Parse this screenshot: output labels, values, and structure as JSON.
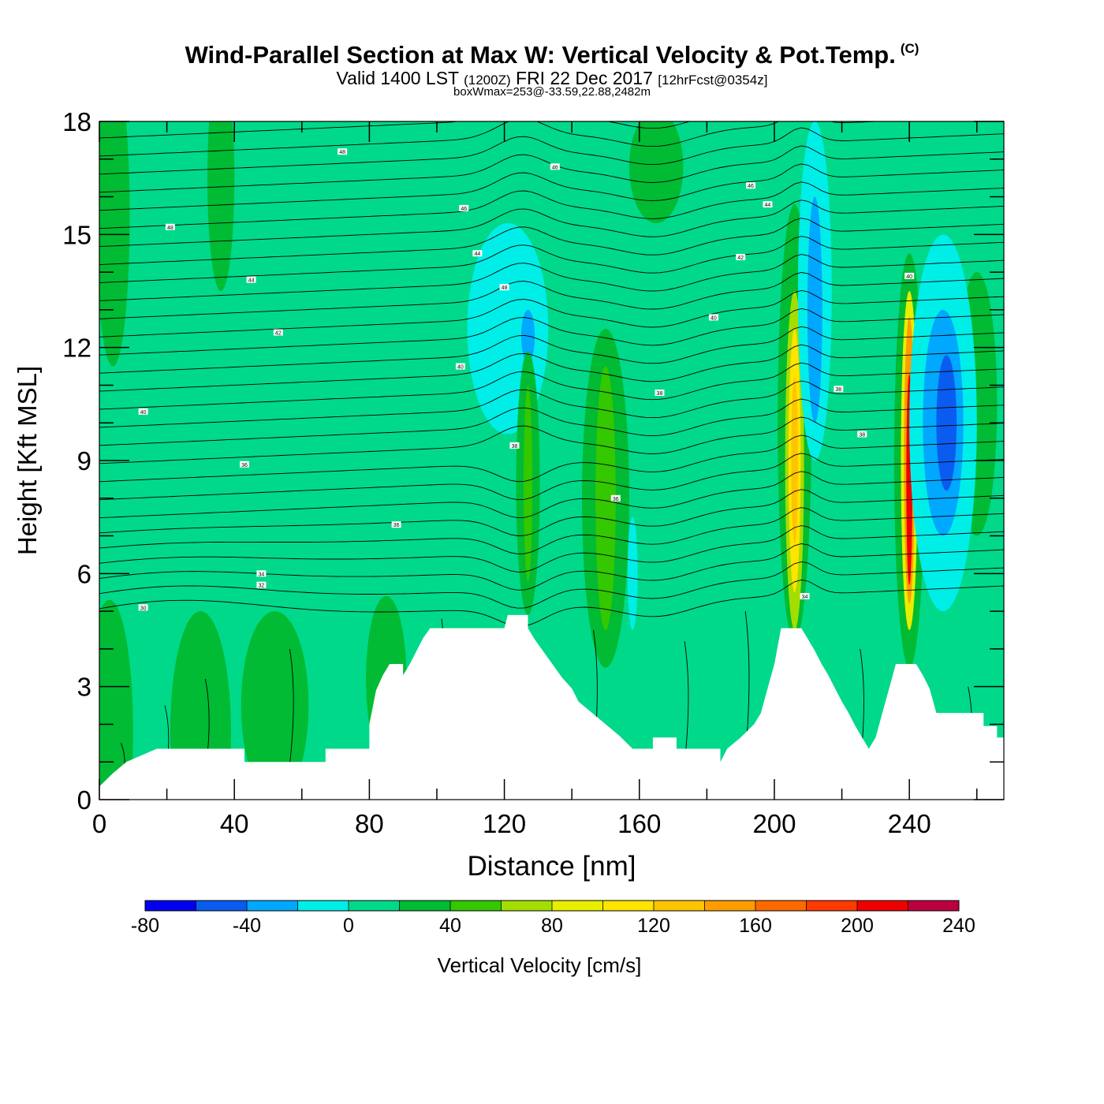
{
  "title": {
    "main": "Wind-Parallel Section at Max W: Vertical Velocity & Pot.Temp.",
    "copyright_mark": "(C)",
    "valid_prefix": "Valid 1400 LST",
    "valid_utc": "(1200Z)",
    "valid_date": "FRI 22 Dec 2017",
    "forecast": "[12hrFcst@0354z]",
    "box_wmax": "boxWmax=253@-33.59,22.88,2482m"
  },
  "chart_data": {
    "type": "heatmap",
    "xlabel": "Distance [nm]",
    "ylabel": "Height [Kft MSL]",
    "xlim": [
      0,
      268
    ],
    "ylim": [
      0,
      18
    ],
    "xticks": [
      0,
      40,
      80,
      120,
      160,
      200,
      240
    ],
    "yticks": [
      0,
      3,
      6,
      9,
      12,
      15,
      18
    ],
    "colorbar": {
      "label": "Vertical Velocity [cm/s]",
      "levels": [
        -80,
        -60,
        -40,
        -20,
        0,
        20,
        40,
        60,
        80,
        100,
        120,
        140,
        160,
        180,
        200,
        220,
        240
      ],
      "tick_labels": [
        "-80",
        "-40",
        "0",
        "40",
        "80",
        "120",
        "160",
        "200",
        "240"
      ],
      "colors": [
        "#0000ee",
        "#0a5cf0",
        "#00a8ff",
        "#00eee8",
        "#00d98a",
        "#00bb33",
        "#33c800",
        "#a3de00",
        "#e8ee00",
        "#ffe400",
        "#ffc400",
        "#ff9d00",
        "#ff6a00",
        "#ff3a00",
        "#ee0000",
        "#bb0040"
      ]
    },
    "background_value": 0,
    "terrain": [
      [
        0,
        0.35
      ],
      [
        4,
        0.7
      ],
      [
        8,
        1.0
      ],
      [
        17,
        1.35
      ],
      [
        43,
        1.35
      ],
      [
        43,
        1.0
      ],
      [
        67,
        1.0
      ],
      [
        67,
        1.35
      ],
      [
        80,
        1.35
      ],
      [
        80,
        2.0
      ],
      [
        82,
        2.9
      ],
      [
        84,
        3.3
      ],
      [
        86,
        3.6
      ],
      [
        90,
        3.6
      ],
      [
        90,
        3.3
      ],
      [
        92,
        3.6
      ],
      [
        94,
        3.95
      ],
      [
        96,
        4.3
      ],
      [
        98,
        4.55
      ],
      [
        120,
        4.55
      ],
      [
        121,
        4.9
      ],
      [
        127,
        4.9
      ],
      [
        127,
        4.55
      ],
      [
        129,
        4.25
      ],
      [
        131,
        4.0
      ],
      [
        133,
        3.75
      ],
      [
        135,
        3.5
      ],
      [
        137,
        3.25
      ],
      [
        140,
        2.95
      ],
      [
        142,
        2.6
      ],
      [
        146,
        2.3
      ],
      [
        150,
        2.0
      ],
      [
        154,
        1.7
      ],
      [
        158,
        1.35
      ],
      [
        164,
        1.35
      ],
      [
        164,
        1.65
      ],
      [
        171,
        1.65
      ],
      [
        171,
        1.35
      ],
      [
        184,
        1.35
      ],
      [
        184,
        1.0
      ],
      [
        186,
        1.35
      ],
      [
        190,
        1.65
      ],
      [
        194,
        2.0
      ],
      [
        196,
        2.3
      ],
      [
        198,
        2.95
      ],
      [
        200,
        3.6
      ],
      [
        202,
        4.55
      ],
      [
        208,
        4.55
      ],
      [
        210,
        4.25
      ],
      [
        212,
        3.95
      ],
      [
        214,
        3.6
      ],
      [
        216,
        3.3
      ],
      [
        218,
        2.95
      ],
      [
        220,
        2.6
      ],
      [
        222,
        2.3
      ],
      [
        224,
        1.95
      ],
      [
        226,
        1.65
      ],
      [
        228,
        1.35
      ],
      [
        230,
        1.65
      ],
      [
        232,
        2.3
      ],
      [
        234,
        2.95
      ],
      [
        236,
        3.6
      ],
      [
        240,
        3.6
      ],
      [
        242,
        3.6
      ],
      [
        244,
        3.3
      ],
      [
        246,
        2.95
      ],
      [
        248,
        2.3
      ],
      [
        262,
        2.3
      ],
      [
        262,
        1.95
      ],
      [
        266,
        1.95
      ],
      [
        266,
        1.65
      ],
      [
        268,
        1.65
      ]
    ],
    "velocity_features": [
      {
        "x": 3,
        "y": 1.8,
        "rx": 7,
        "ry": 3.5,
        "value": 20
      },
      {
        "x": 30,
        "y": 1.8,
        "rx": 9,
        "ry": 3.2,
        "value": 20
      },
      {
        "x": 52,
        "y": 2.5,
        "rx": 10,
        "ry": 2.5,
        "value": 20
      },
      {
        "x": 85,
        "y": 3.2,
        "rx": 6,
        "ry": 2.2,
        "value": 20
      },
      {
        "x": 4,
        "y": 15.5,
        "rx": 5,
        "ry": 4,
        "value": 20
      },
      {
        "x": 36,
        "y": 16.5,
        "rx": 4,
        "ry": 3,
        "value": 20
      },
      {
        "x": 165,
        "y": 16.8,
        "rx": 8,
        "ry": 1.5,
        "value": 20
      },
      {
        "x": 260,
        "y": 10.5,
        "rx": 6,
        "ry": 3.5,
        "value": 20
      },
      {
        "x": 121,
        "y": 12.5,
        "rx": 12,
        "ry": 2.8,
        "value": -20
      },
      {
        "x": 127,
        "y": 12.3,
        "rx": 2,
        "ry": 0.7,
        "value": -40
      },
      {
        "x": 127,
        "y": 8.4,
        "rx": 3.5,
        "ry": 3.5,
        "value": 20
      },
      {
        "x": 127,
        "y": 8.4,
        "rx": 1.3,
        "ry": 2.6,
        "value": 40
      },
      {
        "x": 150,
        "y": 8.0,
        "rx": 7,
        "ry": 4.5,
        "value": 20
      },
      {
        "x": 150,
        "y": 8.0,
        "rx": 3,
        "ry": 3.5,
        "value": 40
      },
      {
        "x": 158,
        "y": 6.0,
        "rx": 1.5,
        "ry": 1.5,
        "value": -20
      },
      {
        "x": 206,
        "y": 10.0,
        "rx": 5,
        "ry": 5.8,
        "value": 20
      },
      {
        "x": 206,
        "y": 9.0,
        "rx": 2.8,
        "ry": 4.5,
        "value": 60
      },
      {
        "x": 206,
        "y": 9.0,
        "rx": 1.8,
        "ry": 3.5,
        "value": 100
      },
      {
        "x": 206,
        "y": 9.0,
        "rx": 1.0,
        "ry": 2.2,
        "value": 120
      },
      {
        "x": 212,
        "y": 13.5,
        "rx": 5,
        "ry": 4.5,
        "value": -20
      },
      {
        "x": 212,
        "y": 13.0,
        "rx": 2.2,
        "ry": 3.0,
        "value": -40
      },
      {
        "x": 240,
        "y": 9.0,
        "rx": 4.5,
        "ry": 5.5,
        "value": 20
      },
      {
        "x": 240,
        "y": 9.0,
        "rx": 2.5,
        "ry": 4.5,
        "value": 80
      },
      {
        "x": 240,
        "y": 9.0,
        "rx": 1.6,
        "ry": 3.8,
        "value": 140
      },
      {
        "x": 240,
        "y": 8.5,
        "rx": 0.9,
        "ry": 2.8,
        "value": 200
      },
      {
        "x": 250,
        "y": 10.0,
        "rx": 10,
        "ry": 5.0,
        "value": -20
      },
      {
        "x": 250,
        "y": 10.0,
        "rx": 6,
        "ry": 3.0,
        "value": -40
      },
      {
        "x": 251,
        "y": 10.0,
        "rx": 3,
        "ry": 1.8,
        "value": -60
      }
    ],
    "theta_contour_labels": [
      {
        "x": 13,
        "y": 10.3,
        "label": "40"
      },
      {
        "x": 43,
        "y": 8.9,
        "label": "36"
      },
      {
        "x": 48,
        "y": 6.0,
        "label": "34"
      },
      {
        "x": 48,
        "y": 5.7,
        "label": "32"
      },
      {
        "x": 13,
        "y": 5.1,
        "label": "30"
      },
      {
        "x": 88,
        "y": 7.3,
        "label": "36"
      },
      {
        "x": 107,
        "y": 11.5,
        "label": "40"
      },
      {
        "x": 108,
        "y": 15.7,
        "label": "46"
      },
      {
        "x": 112,
        "y": 14.5,
        "label": "44"
      },
      {
        "x": 120,
        "y": 13.6,
        "label": "48"
      },
      {
        "x": 123,
        "y": 9.4,
        "label": "38"
      },
      {
        "x": 135,
        "y": 16.8,
        "label": "46"
      },
      {
        "x": 153,
        "y": 8.0,
        "label": "36"
      },
      {
        "x": 166,
        "y": 10.8,
        "label": "38"
      },
      {
        "x": 182,
        "y": 12.8,
        "label": "40"
      },
      {
        "x": 190,
        "y": 14.4,
        "label": "42"
      },
      {
        "x": 193,
        "y": 16.3,
        "label": "46"
      },
      {
        "x": 198,
        "y": 15.8,
        "label": "44"
      },
      {
        "x": 209,
        "y": 5.4,
        "label": "34"
      },
      {
        "x": 219,
        "y": 10.9,
        "label": "38"
      },
      {
        "x": 226,
        "y": 9.7,
        "label": "38"
      },
      {
        "x": 240,
        "y": 13.9,
        "label": "40"
      },
      {
        "x": 21,
        "y": 15.2,
        "label": "48"
      },
      {
        "x": 45,
        "y": 13.8,
        "label": "44"
      },
      {
        "x": 53,
        "y": 12.4,
        "label": "42"
      },
      {
        "x": 72,
        "y": 17.2,
        "label": "48"
      }
    ]
  }
}
